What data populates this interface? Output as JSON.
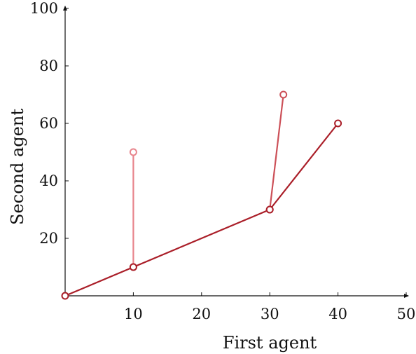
{
  "chart_data": {
    "type": "line",
    "title": "",
    "xlabel": "First agent",
    "ylabel": "Second agent",
    "xlim": [
      0,
      50
    ],
    "ylim": [
      0,
      100
    ],
    "xticks": [
      10,
      20,
      30,
      40,
      50
    ],
    "yticks": [
      20,
      40,
      60,
      80,
      100
    ],
    "grid": false,
    "legend": "none",
    "series": [
      {
        "color": "#e8848c",
        "marker": "open-circle",
        "points": [
          [
            10,
            10
          ],
          [
            10,
            50
          ]
        ]
      },
      {
        "color": "#cc5058",
        "marker": "open-circle",
        "points": [
          [
            30,
            30
          ],
          [
            32,
            70
          ]
        ]
      },
      {
        "color": "#aa1e28",
        "marker": "open-circle",
        "points": [
          [
            0,
            0
          ],
          [
            10,
            10
          ],
          [
            30,
            30
          ],
          [
            40,
            60
          ]
        ]
      }
    ]
  }
}
